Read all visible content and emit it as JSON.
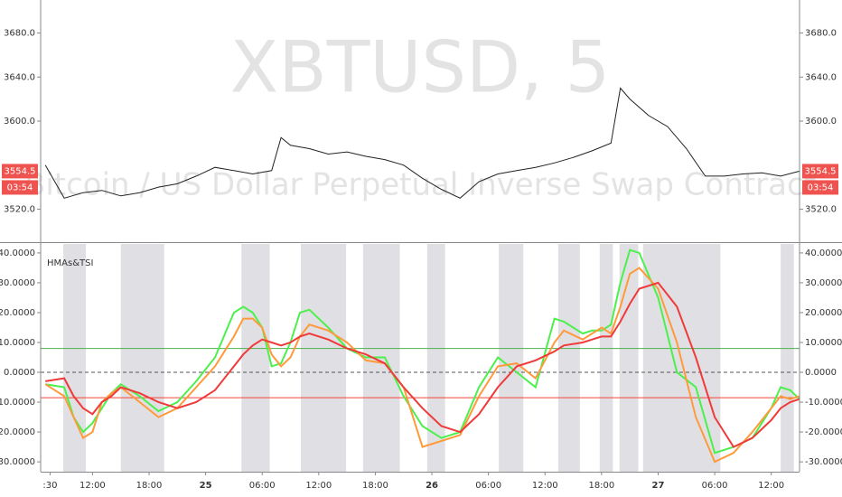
{
  "chart_data": [
    {
      "type": "line",
      "title": "XBTUSD, 5",
      "subtitle": "Bitcoin / US Dollar Perpetual Inverse Swap Contract",
      "x": [
        7,
        9,
        11,
        13,
        15,
        17,
        19,
        21,
        23,
        25,
        27,
        29,
        31,
        32,
        33,
        35,
        37,
        39,
        41,
        43,
        45,
        47,
        49,
        51,
        53,
        55,
        57,
        59,
        61,
        63,
        65,
        67,
        68,
        69,
        71,
        73,
        75,
        77,
        79,
        81,
        83,
        85,
        87
      ],
      "series": [
        {
          "color": "#222222",
          "values": [
            3560,
            3530,
            3535,
            3537,
            3532,
            3535,
            3540,
            3543,
            3550,
            3558,
            3555,
            3552,
            3555,
            3585,
            3578,
            3575,
            3570,
            3572,
            3568,
            3565,
            3560,
            3548,
            3538,
            3530,
            3545,
            3552,
            3555,
            3558,
            3562,
            3567,
            3573,
            3580,
            3630,
            3620,
            3605,
            3595,
            3575,
            3550,
            3550,
            3552,
            3553,
            3550,
            3554.5
          ]
        }
      ],
      "last_price": 3554.5,
      "countdown": "03:54",
      "marker_color": "#ef5350",
      "xlim": [
        6.5,
        87
      ],
      "ylim": [
        3490,
        3710
      ],
      "yticks": [
        {
          "value": 3680,
          "label": "3680.0"
        },
        {
          "value": 3640,
          "label": "3640.0"
        },
        {
          "value": 3600,
          "label": "3600.0"
        },
        {
          "value": 3520,
          "label": "3520.0"
        }
      ]
    },
    {
      "type": "line",
      "title": "HMAs&TSI",
      "x": [
        7,
        9,
        10,
        11,
        12,
        13,
        14,
        15,
        17,
        19,
        21,
        23,
        25,
        27,
        28,
        29,
        30,
        31,
        32,
        33,
        34,
        35,
        37,
        39,
        41,
        43,
        45,
        47,
        49,
        51,
        53,
        55,
        57,
        59,
        61,
        62,
        64,
        65,
        66,
        67,
        68,
        69,
        70,
        72,
        74,
        76,
        78,
        80,
        82,
        84,
        85,
        86,
        87
      ],
      "series": [
        {
          "color": "#4cf04c",
          "values": [
            -4,
            -5,
            -15,
            -20,
            -17,
            -12,
            -7,
            -4,
            -8,
            -13,
            -10,
            -3,
            5,
            20,
            22,
            20,
            15,
            2,
            3,
            10,
            20,
            21,
            15,
            8,
            5,
            5,
            -8,
            -18,
            -22,
            -20,
            -5,
            5,
            0,
            -5,
            18,
            17,
            13,
            14,
            14,
            16,
            30,
            41,
            40,
            25,
            0,
            -5,
            -27,
            -25,
            -22,
            -12,
            -5,
            -6,
            -9
          ]
        },
        {
          "color": "#ff9a3c",
          "values": [
            -4,
            -8,
            -15,
            -22,
            -20,
            -10,
            -7,
            -5,
            -10,
            -15,
            -12,
            -5,
            2,
            12,
            18,
            18,
            15,
            6,
            2,
            5,
            12,
            16,
            14,
            10,
            4,
            3,
            -5,
            -25,
            -23,
            -21,
            -8,
            2,
            3,
            -2,
            10,
            14,
            11,
            13,
            15,
            13,
            22,
            33,
            35,
            28,
            10,
            -15,
            -30,
            -27,
            -20,
            -12,
            -8,
            -9,
            -8
          ]
        },
        {
          "color": "#f03a3a",
          "values": [
            -3,
            -2,
            -8,
            -12,
            -14,
            -10,
            -8,
            -5,
            -7,
            -10,
            -12,
            -10,
            -6,
            2,
            6,
            9,
            11,
            10,
            9,
            10,
            12,
            13,
            11,
            8,
            6,
            3,
            -5,
            -12,
            -18,
            -20,
            -14,
            -5,
            2,
            4,
            7,
            9,
            10,
            11,
            12,
            12,
            17,
            23,
            28,
            30,
            22,
            5,
            -15,
            -25,
            -22,
            -16,
            -12,
            -10,
            -9
          ]
        }
      ],
      "shaded_ranges": [
        [
          8.9,
          11.3
        ],
        [
          15,
          19.6
        ],
        [
          27.8,
          30.8
        ],
        [
          34.1,
          38.9
        ],
        [
          40.7,
          44.6
        ],
        [
          47.5,
          49.4
        ],
        [
          55.1,
          57.7
        ],
        [
          61.4,
          63.7
        ],
        [
          65.8,
          67.2
        ],
        [
          67.9,
          69.9
        ],
        [
          70.4,
          78.6
        ],
        [
          85,
          86.4
        ]
      ],
      "hlines": [
        {
          "value": 8,
          "color": "#4caf50"
        },
        {
          "value": -8.5,
          "color": "#f44336"
        },
        {
          "value": 0,
          "color": "#555555",
          "dashed": true
        }
      ],
      "xlim": [
        6.5,
        87
      ],
      "ylim": [
        -33.3,
        43
      ],
      "yticks": [
        {
          "value": 40,
          "label": "40.0000"
        },
        {
          "value": 30,
          "label": "30.0000"
        },
        {
          "value": 20,
          "label": "20.0000"
        },
        {
          "value": 10,
          "label": "10.0000"
        },
        {
          "value": 0,
          "label": "0.0000"
        },
        {
          "value": -10,
          "label": "-10.0000"
        },
        {
          "value": -20,
          "label": "-20.0000"
        },
        {
          "value": -30,
          "label": "-30.0000"
        }
      ],
      "xticks": [
        {
          "value": 7.5,
          "label": ":30"
        },
        {
          "value": 12,
          "label": "12:00"
        },
        {
          "value": 18,
          "label": "18:00"
        },
        {
          "value": 24,
          "label": "25"
        },
        {
          "value": 30,
          "label": "06:00"
        },
        {
          "value": 36,
          "label": "12:00"
        },
        {
          "value": 42,
          "label": "18:00"
        },
        {
          "value": 48,
          "label": "26"
        },
        {
          "value": 54,
          "label": "06:00"
        },
        {
          "value": 60,
          "label": "12:00"
        },
        {
          "value": 66,
          "label": "18:00"
        },
        {
          "value": 72,
          "label": "27"
        },
        {
          "value": 78,
          "label": "06:00"
        },
        {
          "value": 84,
          "label": "12:00"
        }
      ]
    }
  ]
}
